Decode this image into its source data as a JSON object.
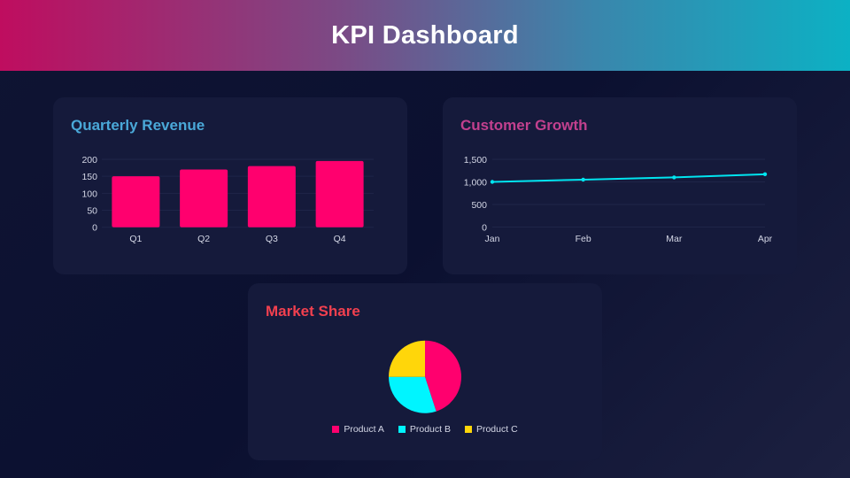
{
  "header": {
    "title": "KPI Dashboard"
  },
  "colors": {
    "bar": "#ff006e",
    "line": "#00e5f0",
    "grid": "#1f2548",
    "revenue_title": "#4aa8d8",
    "growth_title": "#c2408e",
    "market_title": "#f2404f"
  },
  "chart_data": [
    {
      "type": "bar",
      "title": "Quarterly Revenue",
      "categories": [
        "Q1",
        "Q2",
        "Q3",
        "Q4"
      ],
      "values": [
        150,
        170,
        180,
        195
      ],
      "ylim": [
        0,
        200
      ],
      "yticks": [
        "0",
        "50",
        "100",
        "150",
        "200"
      ],
      "ytick_values": [
        0,
        50,
        100,
        150,
        200
      ],
      "grid": true
    },
    {
      "type": "line",
      "title": "Customer Growth",
      "categories": [
        "Jan",
        "Feb",
        "Mar",
        "Apr"
      ],
      "values": [
        1000,
        1050,
        1100,
        1170
      ],
      "ylim": [
        0,
        1500
      ],
      "yticks": [
        "0",
        "500",
        "1,000",
        "1,500"
      ],
      "ytick_values": [
        0,
        500,
        1000,
        1500
      ],
      "grid": true
    },
    {
      "type": "pie",
      "title": "Market Share",
      "labels": [
        "Product A",
        "Product B",
        "Product C"
      ],
      "values": [
        45,
        30,
        25
      ],
      "colors": [
        "#ff006e",
        "#00f5ff",
        "#ffd60a"
      ],
      "legend": "bottom"
    }
  ]
}
